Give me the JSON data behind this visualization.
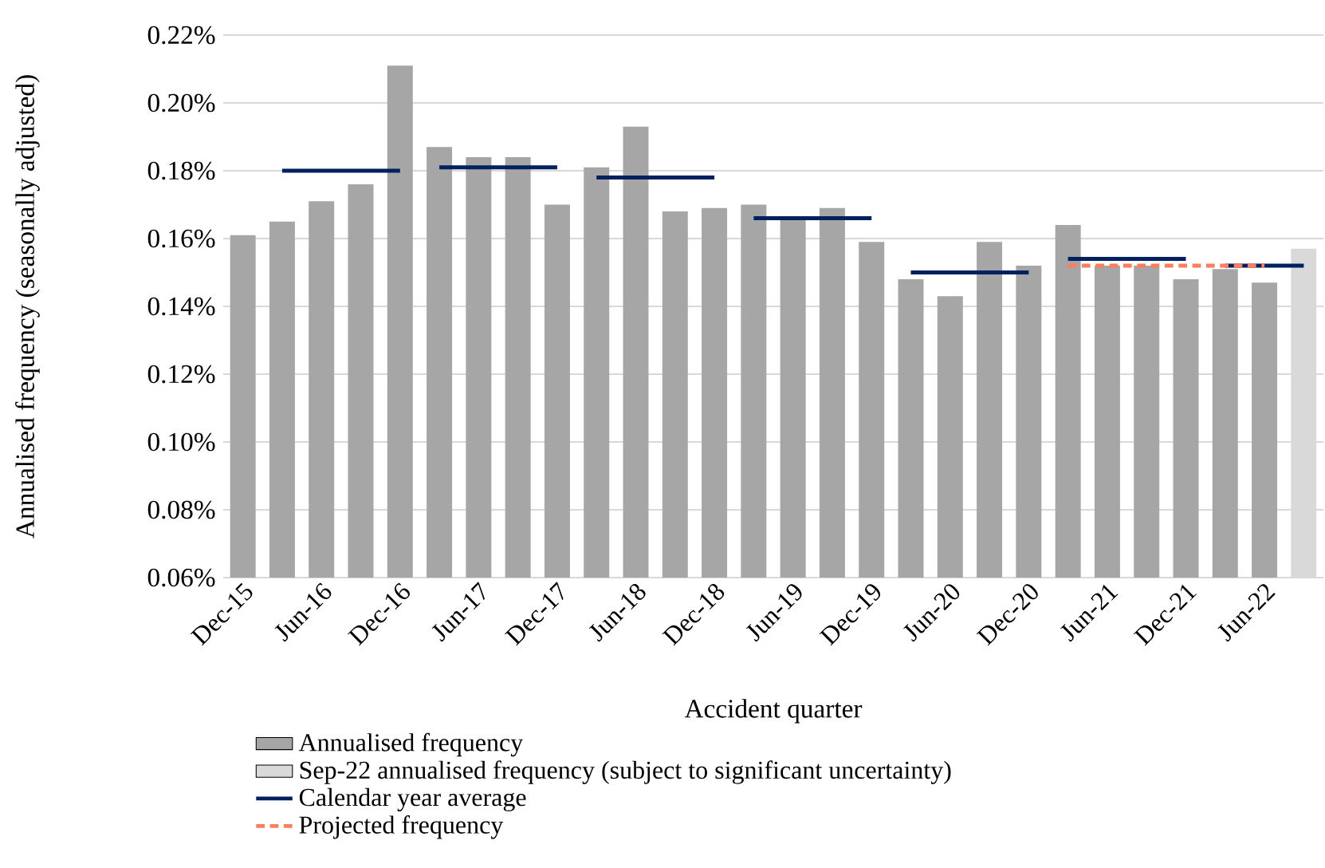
{
  "chart_data": {
    "type": "bar",
    "xlabel": "Accident quarter",
    "ylabel": "Annualised frequency (seasonally adjusted)",
    "categories": [
      "Dec-15",
      null,
      "Jun-16",
      null,
      "Dec-16",
      null,
      "Jun-17",
      null,
      "Dec-17",
      null,
      "Jun-18",
      null,
      "Dec-18",
      null,
      "Jun-19",
      null,
      "Dec-19",
      null,
      "Jun-20",
      null,
      "Dec-20",
      null,
      "Jun-21",
      null,
      "Dec-21",
      null,
      "Jun-22",
      null
    ],
    "ylim": [
      0.06,
      0.22
    ],
    "yticks": [
      {
        "value": 0.06,
        "label": "0.06%"
      },
      {
        "value": 0.08,
        "label": "0.08%"
      },
      {
        "value": 0.1,
        "label": "0.10%"
      },
      {
        "value": 0.12,
        "label": "0.12%"
      },
      {
        "value": 0.14,
        "label": "0.14%"
      },
      {
        "value": 0.16,
        "label": "0.16%"
      },
      {
        "value": 0.18,
        "label": "0.18%"
      },
      {
        "value": 0.2,
        "label": "0.20%"
      },
      {
        "value": 0.22,
        "label": "0.22%"
      }
    ],
    "grid": "y",
    "legend": "bottom",
    "series": [
      {
        "name": "Annualised frequency",
        "color": "#a6a6a6",
        "values": [
          0.161,
          0.165,
          0.171,
          0.176,
          0.211,
          0.187,
          0.184,
          0.184,
          0.17,
          0.181,
          0.193,
          0.168,
          0.169,
          0.17,
          0.166,
          0.169,
          0.159,
          0.148,
          0.143,
          0.159,
          0.152,
          0.164,
          0.152,
          0.152,
          0.148,
          0.151,
          0.147,
          null
        ]
      },
      {
        "name": "Sep-22 annualised frequency (subject to significant uncertainty)",
        "color": "#d9d9d9",
        "values": [
          null,
          null,
          null,
          null,
          null,
          null,
          null,
          null,
          null,
          null,
          null,
          null,
          null,
          null,
          null,
          null,
          null,
          null,
          null,
          null,
          null,
          null,
          null,
          null,
          null,
          null,
          null,
          0.157
        ]
      },
      {
        "name": "Calendar year average",
        "type": "line",
        "color": "#002060",
        "values": [
          null,
          0.18,
          0.18,
          0.18,
          0.18,
          null,
          null,
          null,
          null,
          null,
          null,
          null,
          null,
          null,
          null,
          null,
          null,
          null,
          null,
          null,
          null,
          null,
          null,
          null,
          null,
          null,
          null,
          null
        ]
      },
      {
        "type": "line",
        "color": "#002060",
        "values": [
          null,
          null,
          null,
          null,
          null,
          0.181,
          0.181,
          0.181,
          0.181,
          null,
          null,
          null,
          null,
          null,
          null,
          null,
          null,
          null,
          null,
          null,
          null,
          null,
          null,
          null,
          null,
          null,
          null,
          null
        ]
      },
      {
        "type": "line",
        "color": "#002060",
        "values": [
          null,
          null,
          null,
          null,
          null,
          null,
          null,
          null,
          null,
          0.178,
          0.178,
          0.178,
          0.178,
          null,
          null,
          null,
          null,
          null,
          null,
          null,
          null,
          null,
          null,
          null,
          null,
          null,
          null,
          null
        ]
      },
      {
        "type": "line",
        "color": "#002060",
        "values": [
          null,
          null,
          null,
          null,
          null,
          null,
          null,
          null,
          null,
          null,
          null,
          null,
          null,
          0.166,
          0.166,
          0.166,
          0.166,
          null,
          null,
          null,
          null,
          null,
          null,
          null,
          null,
          null,
          null,
          null
        ]
      },
      {
        "type": "line",
        "color": "#002060",
        "values": [
          null,
          null,
          null,
          null,
          null,
          null,
          null,
          null,
          null,
          null,
          null,
          null,
          null,
          null,
          null,
          null,
          null,
          0.15,
          0.15,
          0.15,
          0.15,
          null,
          null,
          null,
          null,
          null,
          null,
          null
        ]
      },
      {
        "type": "line",
        "color": "#002060",
        "values": [
          null,
          null,
          null,
          null,
          null,
          null,
          null,
          null,
          null,
          null,
          null,
          null,
          null,
          null,
          null,
          null,
          null,
          null,
          null,
          null,
          null,
          0.154,
          0.154,
          0.154,
          0.154,
          null,
          null,
          null
        ]
      },
      {
        "type": "line",
        "color": "#002060",
        "values": [
          null,
          null,
          null,
          null,
          null,
          null,
          null,
          null,
          null,
          null,
          null,
          null,
          null,
          null,
          null,
          null,
          null,
          null,
          null,
          null,
          null,
          null,
          null,
          null,
          null,
          0.152,
          0.152,
          0.152
        ]
      },
      {
        "name": "Projected frequency",
        "type": "line",
        "color": "#ff7c5c",
        "line_style": "dashed",
        "values": [
          null,
          null,
          null,
          null,
          null,
          null,
          null,
          null,
          null,
          null,
          null,
          null,
          null,
          null,
          null,
          null,
          null,
          null,
          null,
          null,
          null,
          0.152,
          0.152,
          0.152,
          0.152,
          0.152,
          0.152,
          null
        ]
      }
    ]
  }
}
